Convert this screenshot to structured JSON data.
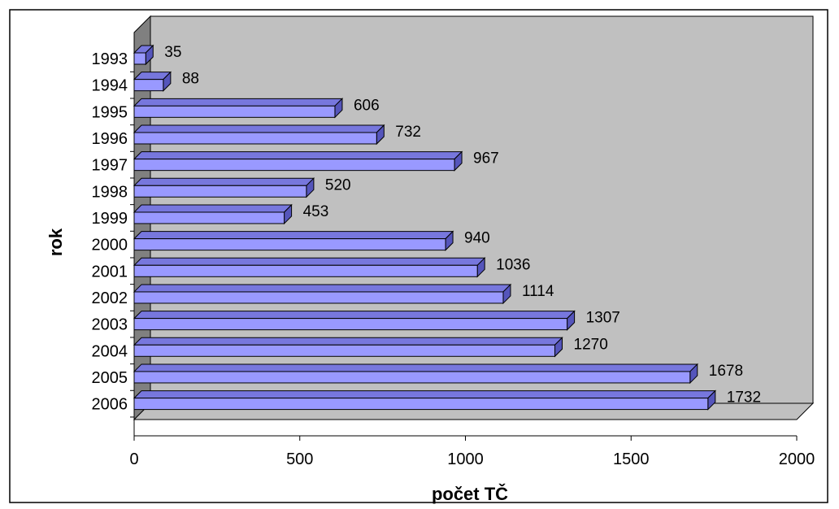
{
  "chart_data": {
    "type": "bar",
    "orientation": "horizontal",
    "three_d": true,
    "title": "",
    "xlabel": "počet TČ",
    "ylabel": "rok",
    "xlim": [
      0,
      2000
    ],
    "xticks": [
      0,
      500,
      1000,
      1500,
      2000
    ],
    "categories": [
      "1993",
      "1994",
      "1995",
      "1996",
      "1997",
      "1998",
      "1999",
      "2000",
      "2001",
      "2002",
      "2003",
      "2004",
      "2005",
      "2006"
    ],
    "values": [
      35,
      88,
      606,
      732,
      967,
      520,
      453,
      940,
      1036,
      1114,
      1307,
      1270,
      1678,
      1732
    ],
    "data_labels": [
      "35",
      "88",
      "606",
      "732",
      "967",
      "520",
      "453",
      "940",
      "1036",
      "1114",
      "1307",
      "1270",
      "1678",
      "1732"
    ],
    "grid": false,
    "legend": "none",
    "colors": {
      "bar_front": "#9999FF",
      "bar_top": "#7777DD",
      "bar_side": "#5555BB",
      "back_wall": "#C0C0C0",
      "side_wall": "#808080",
      "floor": "#C0C0C0",
      "background": "#FFFFFF"
    }
  }
}
